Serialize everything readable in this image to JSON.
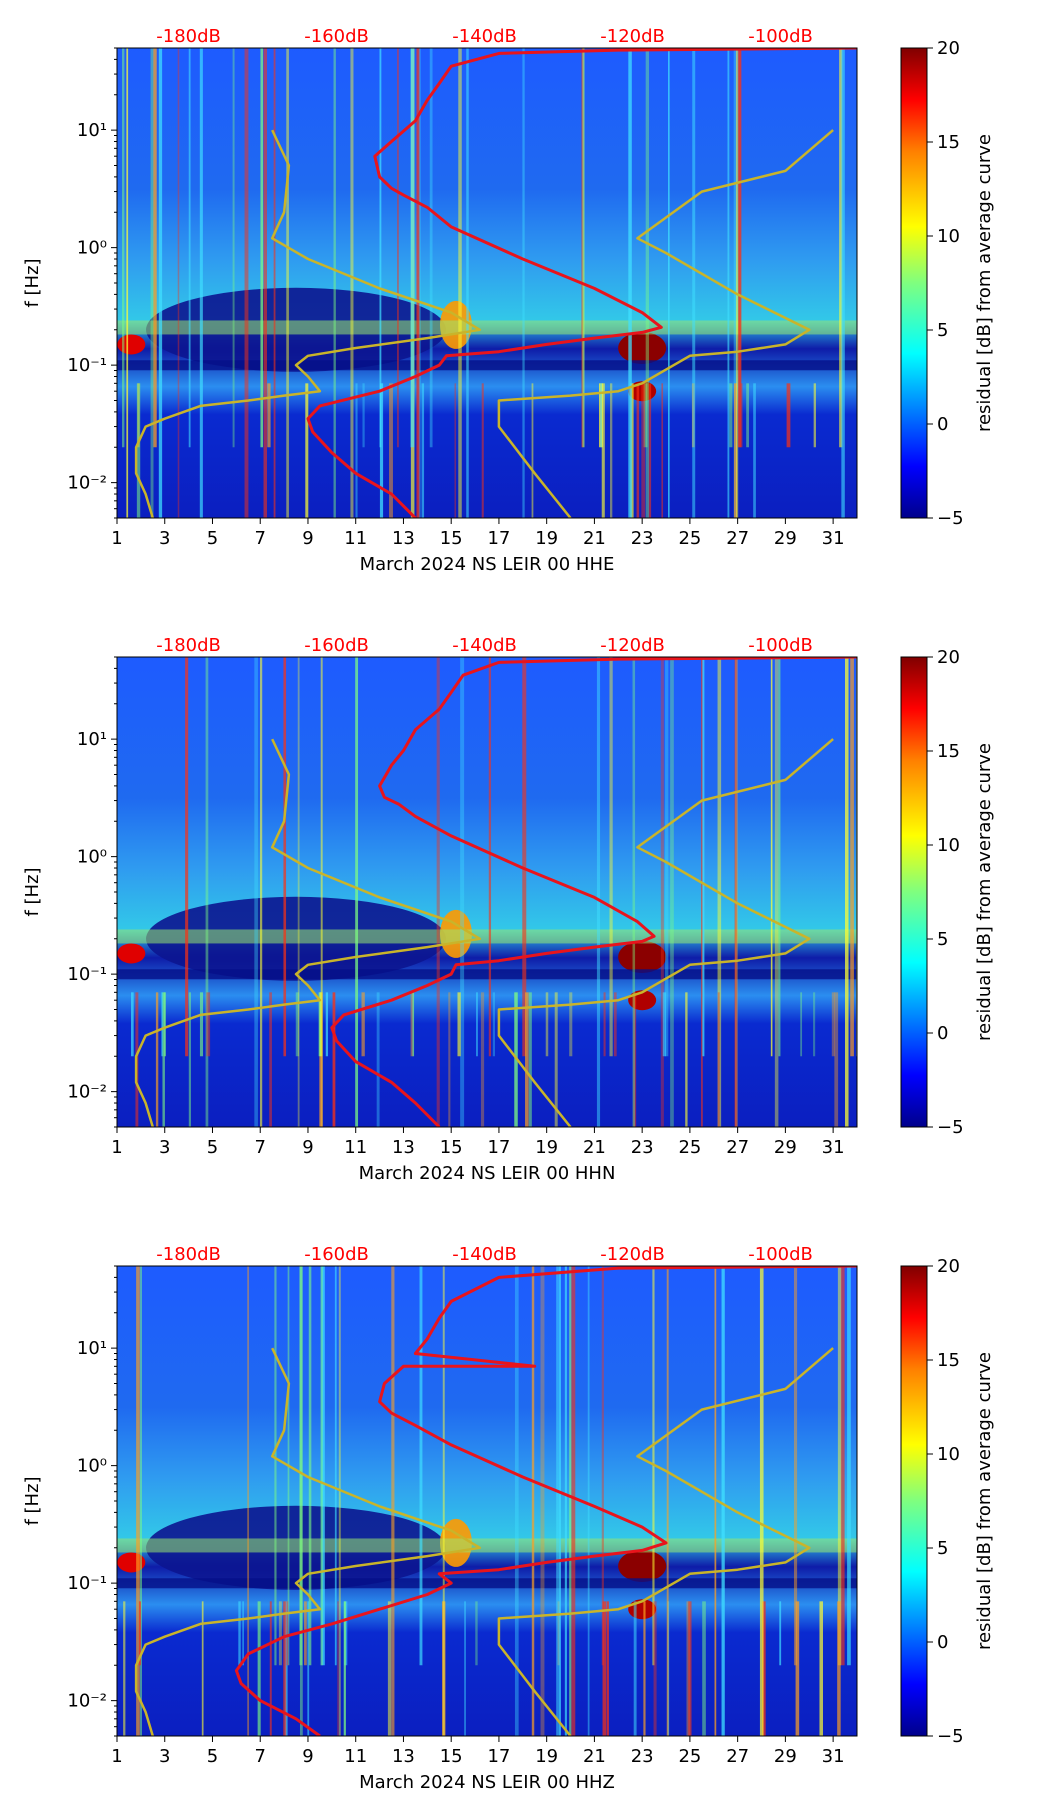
{
  "colors": {
    "accent_red": "#ff0000",
    "curve_red": "#e8141c",
    "curve_yellow": "#c9b42a",
    "heatmap_low": "#00008b",
    "heatmap_high": "#800000"
  },
  "colorbar": {
    "label": "residual [dB] from average curve",
    "range": [
      -5,
      20
    ],
    "ticks": [
      "20",
      "15",
      "10",
      "5",
      "0",
      "−5"
    ],
    "tick_values": [
      20,
      15,
      10,
      5,
      0,
      -5
    ],
    "colormap": "jet"
  },
  "chart_data": [
    {
      "type": "heatmap",
      "xlabel": "March 2024 NS LEIR 00 HHE",
      "ylabel": "f [Hz]",
      "xlim": [
        1,
        32
      ],
      "ylim": [
        0.005,
        50
      ],
      "yscale": "log",
      "x_ticks": [
        "1",
        "3",
        "5",
        "7",
        "9",
        "11",
        "13",
        "15",
        "17",
        "19",
        "21",
        "23",
        "25",
        "27",
        "29",
        "31"
      ],
      "x_tick_values": [
        1,
        3,
        5,
        7,
        9,
        11,
        13,
        15,
        17,
        19,
        21,
        23,
        25,
        27,
        29,
        31
      ],
      "y_ticks": [
        "10⁻²",
        "10⁻¹",
        "10⁰",
        "10¹"
      ],
      "y_tick_values": [
        0.01,
        0.1,
        1,
        10
      ],
      "top_ticks": [
        "-180dB",
        "-160dB",
        "-140dB",
        "-120dB",
        "-100dB"
      ],
      "top_tick_values": [
        4,
        10.2,
        16.4,
        22.6,
        28.8
      ],
      "series": [
        {
          "color": "red",
          "x": [
            13.5,
            12.5,
            11,
            10,
            9.2,
            9,
            9.5,
            12,
            13.5,
            14.5,
            14.8,
            17,
            19,
            21,
            23,
            23.8,
            23,
            21,
            18,
            15,
            14,
            13,
            12.5,
            12,
            11.8,
            12.5,
            13.5,
            14,
            14.5,
            15,
            17,
            22,
            32
          ],
          "y": [
            0.005,
            0.008,
            0.012,
            0.018,
            0.027,
            0.035,
            0.045,
            0.06,
            0.08,
            0.1,
            0.12,
            0.13,
            0.15,
            0.17,
            0.19,
            0.21,
            0.28,
            0.45,
            0.8,
            1.5,
            2.2,
            2.8,
            3.2,
            4,
            6,
            8,
            12,
            18,
            25,
            35,
            45,
            48,
            50
          ]
        },
        {
          "color": "yellow",
          "x": [
            2.5,
            2.2,
            1.8,
            1.8,
            2.2,
            3,
            4.5,
            6.5,
            8,
            9.5,
            9,
            8.5,
            9,
            11,
            14,
            16.2,
            15,
            12,
            9,
            7.5,
            8,
            8.2,
            7.5
          ],
          "y": [
            0.005,
            0.008,
            0.012,
            0.02,
            0.03,
            0.035,
            0.045,
            0.05,
            0.055,
            0.06,
            0.08,
            0.1,
            0.12,
            0.14,
            0.17,
            0.2,
            0.28,
            0.45,
            0.8,
            1.2,
            2,
            5,
            10
          ]
        },
        {
          "color": "yellow",
          "x": [
            20,
            18.5,
            17,
            17,
            20,
            22,
            23,
            25,
            27,
            29,
            30,
            27,
            24,
            22.8,
            25.5,
            29,
            31
          ],
          "y": [
            0.005,
            0.012,
            0.03,
            0.05,
            0.055,
            0.06,
            0.07,
            0.12,
            0.13,
            0.15,
            0.2,
            0.4,
            0.9,
            1.2,
            3,
            4.5,
            10
          ]
        }
      ]
    },
    {
      "type": "heatmap",
      "xlabel": "March 2024 NS LEIR 00 HHN",
      "ylabel": "f [Hz]",
      "xlim": [
        1,
        32
      ],
      "ylim": [
        0.005,
        50
      ],
      "yscale": "log",
      "x_ticks": [
        "1",
        "3",
        "5",
        "7",
        "9",
        "11",
        "13",
        "15",
        "17",
        "19",
        "21",
        "23",
        "25",
        "27",
        "29",
        "31"
      ],
      "x_tick_values": [
        1,
        3,
        5,
        7,
        9,
        11,
        13,
        15,
        17,
        19,
        21,
        23,
        25,
        27,
        29,
        31
      ],
      "y_ticks": [
        "10⁻²",
        "10⁻¹",
        "10⁰",
        "10¹"
      ],
      "y_tick_values": [
        0.01,
        0.1,
        1,
        10
      ],
      "top_ticks": [
        "-180dB",
        "-160dB",
        "-140dB",
        "-120dB",
        "-100dB"
      ],
      "top_tick_values": [
        4,
        10.2,
        16.4,
        22.6,
        28.8
      ],
      "series": [
        {
          "color": "red",
          "x": [
            14.5,
            13.5,
            12.5,
            11,
            10.2,
            10,
            10.5,
            12.5,
            14,
            15,
            15.2,
            17,
            19,
            21,
            23,
            23.5,
            22.8,
            21,
            18,
            15,
            13.5,
            12.8,
            12.2,
            12,
            12.5,
            13,
            13.5,
            14.5,
            15,
            15.5,
            17,
            22,
            32
          ],
          "y": [
            0.005,
            0.008,
            0.012,
            0.018,
            0.027,
            0.035,
            0.045,
            0.06,
            0.08,
            0.1,
            0.12,
            0.13,
            0.15,
            0.17,
            0.19,
            0.21,
            0.28,
            0.45,
            0.8,
            1.5,
            2.2,
            2.8,
            3.2,
            4,
            6,
            8,
            12,
            18,
            25,
            35,
            45,
            48,
            50
          ]
        },
        {
          "color": "yellow",
          "x": [
            2.5,
            2.2,
            1.8,
            1.8,
            2.2,
            3,
            4.5,
            6.5,
            8,
            9.5,
            9,
            8.5,
            9,
            11,
            14,
            16.2,
            15,
            12,
            9,
            7.5,
            8,
            8.2,
            7.5
          ],
          "y": [
            0.005,
            0.008,
            0.012,
            0.02,
            0.03,
            0.035,
            0.045,
            0.05,
            0.055,
            0.06,
            0.08,
            0.1,
            0.12,
            0.14,
            0.17,
            0.2,
            0.28,
            0.45,
            0.8,
            1.2,
            2,
            5,
            10
          ]
        },
        {
          "color": "yellow",
          "x": [
            20,
            18.5,
            17,
            17,
            20,
            22,
            23,
            25,
            27,
            29,
            30,
            27,
            24,
            22.8,
            25.5,
            29,
            31
          ],
          "y": [
            0.005,
            0.012,
            0.03,
            0.05,
            0.055,
            0.06,
            0.07,
            0.12,
            0.13,
            0.15,
            0.2,
            0.4,
            0.9,
            1.2,
            3,
            4.5,
            10
          ]
        }
      ]
    },
    {
      "type": "heatmap",
      "xlabel": "March 2024 NS LEIR 00 HHZ",
      "ylabel": "f [Hz]",
      "xlim": [
        1,
        32
      ],
      "ylim": [
        0.005,
        50
      ],
      "yscale": "log",
      "x_ticks": [
        "1",
        "3",
        "5",
        "7",
        "9",
        "11",
        "13",
        "15",
        "17",
        "19",
        "21",
        "23",
        "25",
        "27",
        "29",
        "31"
      ],
      "x_tick_values": [
        1,
        3,
        5,
        7,
        9,
        11,
        13,
        15,
        17,
        19,
        21,
        23,
        25,
        27,
        29,
        31
      ],
      "y_ticks": [
        "10⁻²",
        "10⁻¹",
        "10⁰",
        "10¹"
      ],
      "y_tick_values": [
        0.01,
        0.1,
        1,
        10
      ],
      "top_ticks": [
        "-180dB",
        "-160dB",
        "-140dB",
        "-120dB",
        "-100dB"
      ],
      "top_tick_values": [
        4,
        10.2,
        16.4,
        22.6,
        28.8
      ],
      "series": [
        {
          "color": "red",
          "x": [
            9.5,
            8.5,
            7,
            6.2,
            6,
            6.5,
            8,
            10,
            12,
            14,
            15,
            14.5,
            17,
            19,
            21,
            23,
            24,
            23,
            21,
            18,
            15,
            13.5,
            12.5,
            12,
            12.2,
            13,
            18.5,
            13.5,
            14,
            14.5,
            15,
            17,
            22,
            32
          ],
          "y": [
            0.005,
            0.007,
            0.01,
            0.014,
            0.018,
            0.025,
            0.035,
            0.045,
            0.06,
            0.08,
            0.1,
            0.12,
            0.13,
            0.15,
            0.17,
            0.19,
            0.22,
            0.3,
            0.45,
            0.8,
            1.5,
            2.2,
            2.8,
            3.5,
            5,
            7,
            7,
            9,
            12,
            18,
            25,
            40,
            48,
            50
          ]
        },
        {
          "color": "yellow",
          "x": [
            2.5,
            2.2,
            1.8,
            1.8,
            2.2,
            3,
            4.5,
            6.5,
            8,
            9.5,
            9,
            8.5,
            9,
            11,
            14,
            16.2,
            15,
            12,
            9,
            7.5,
            8,
            8.2,
            7.5
          ],
          "y": [
            0.005,
            0.008,
            0.012,
            0.02,
            0.03,
            0.035,
            0.045,
            0.05,
            0.055,
            0.06,
            0.08,
            0.1,
            0.12,
            0.14,
            0.17,
            0.2,
            0.28,
            0.45,
            0.8,
            1.2,
            2,
            5,
            10
          ]
        },
        {
          "color": "yellow",
          "x": [
            20,
            18.5,
            17,
            17,
            20,
            22,
            23,
            25,
            27,
            29,
            30,
            27,
            24,
            22.8,
            25.5,
            29,
            31
          ],
          "y": [
            0.005,
            0.012,
            0.03,
            0.05,
            0.055,
            0.06,
            0.07,
            0.12,
            0.13,
            0.15,
            0.2,
            0.4,
            0.9,
            1.2,
            3,
            4.5,
            10
          ]
        }
      ]
    }
  ]
}
